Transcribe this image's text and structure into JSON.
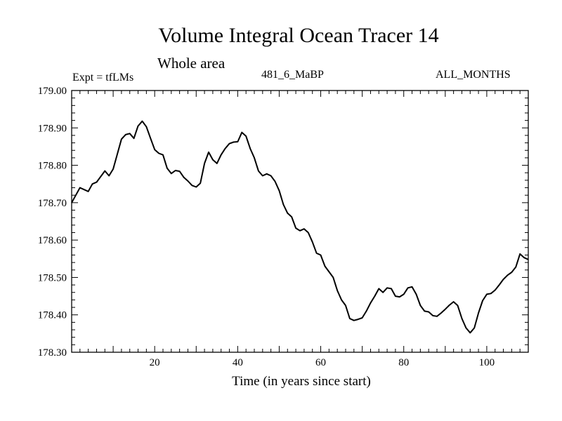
{
  "chart_data": {
    "type": "line",
    "title": "Volume Integral Ocean Tracer 14",
    "subtitle": "Whole area",
    "left_label": "Expt = tfLMs",
    "center_label": "481_6_MaBP",
    "right_label": "ALL_MONTHS",
    "xlabel": "Time (in years since start)",
    "ylabel": "",
    "xlim": [
      0,
      110
    ],
    "ylim": [
      178.3,
      179.0
    ],
    "x_ticks": [
      20,
      40,
      60,
      80,
      100
    ],
    "y_ticks": [
      "178.30",
      "178.40",
      "178.50",
      "178.60",
      "178.70",
      "178.80",
      "178.90",
      "179.00"
    ],
    "grid": false,
    "series": [
      {
        "name": "Volume Integral Ocean Tracer 14",
        "color": "#000000",
        "x": [
          0,
          1,
          2,
          3,
          4,
          5,
          6,
          7,
          8,
          9,
          10,
          11,
          12,
          13,
          14,
          15,
          16,
          17,
          18,
          19,
          20,
          21,
          22,
          23,
          24,
          25,
          26,
          27,
          28,
          29,
          30,
          31,
          32,
          33,
          34,
          35,
          36,
          37,
          38,
          39,
          40,
          41,
          42,
          43,
          44,
          45,
          46,
          47,
          48,
          49,
          50,
          51,
          52,
          53,
          54,
          55,
          56,
          57,
          58,
          59,
          60,
          61,
          62,
          63,
          64,
          65,
          66,
          67,
          68,
          69,
          70,
          71,
          72,
          73,
          74,
          75,
          76,
          77,
          78,
          79,
          80,
          81,
          82,
          83,
          84,
          85,
          86,
          87,
          88,
          89,
          90,
          91,
          92,
          93,
          94,
          95,
          96,
          97,
          98,
          99,
          100,
          101,
          102,
          103,
          104,
          105,
          106,
          107,
          108,
          109,
          110
        ],
        "y": [
          178.7,
          178.72,
          178.74,
          178.735,
          178.73,
          178.75,
          178.755,
          178.77,
          178.785,
          178.772,
          178.79,
          178.83,
          178.87,
          178.882,
          178.885,
          178.872,
          178.905,
          178.918,
          178.903,
          178.872,
          178.842,
          178.832,
          178.828,
          178.792,
          178.778,
          178.786,
          178.784,
          178.768,
          178.758,
          178.746,
          178.742,
          178.752,
          178.805,
          178.835,
          178.815,
          178.805,
          178.828,
          178.845,
          178.858,
          178.862,
          178.863,
          178.888,
          178.878,
          178.845,
          178.82,
          178.785,
          178.772,
          178.777,
          178.772,
          178.757,
          178.732,
          178.695,
          178.672,
          178.662,
          178.632,
          178.625,
          178.63,
          178.62,
          178.595,
          178.565,
          178.56,
          178.53,
          178.515,
          178.5,
          178.465,
          178.44,
          178.425,
          178.39,
          178.385,
          178.388,
          178.392,
          178.41,
          178.432,
          178.45,
          178.47,
          178.46,
          178.472,
          178.47,
          178.45,
          178.448,
          178.455,
          178.472,
          178.475,
          178.455,
          178.425,
          178.41,
          178.408,
          178.398,
          178.396,
          178.405,
          178.415,
          178.426,
          178.435,
          178.425,
          178.39,
          178.365,
          178.352,
          178.365,
          178.405,
          178.438,
          178.455,
          178.457,
          178.466,
          178.48,
          178.495,
          178.506,
          178.514,
          178.528,
          178.563,
          178.553,
          178.548
        ]
      }
    ]
  }
}
